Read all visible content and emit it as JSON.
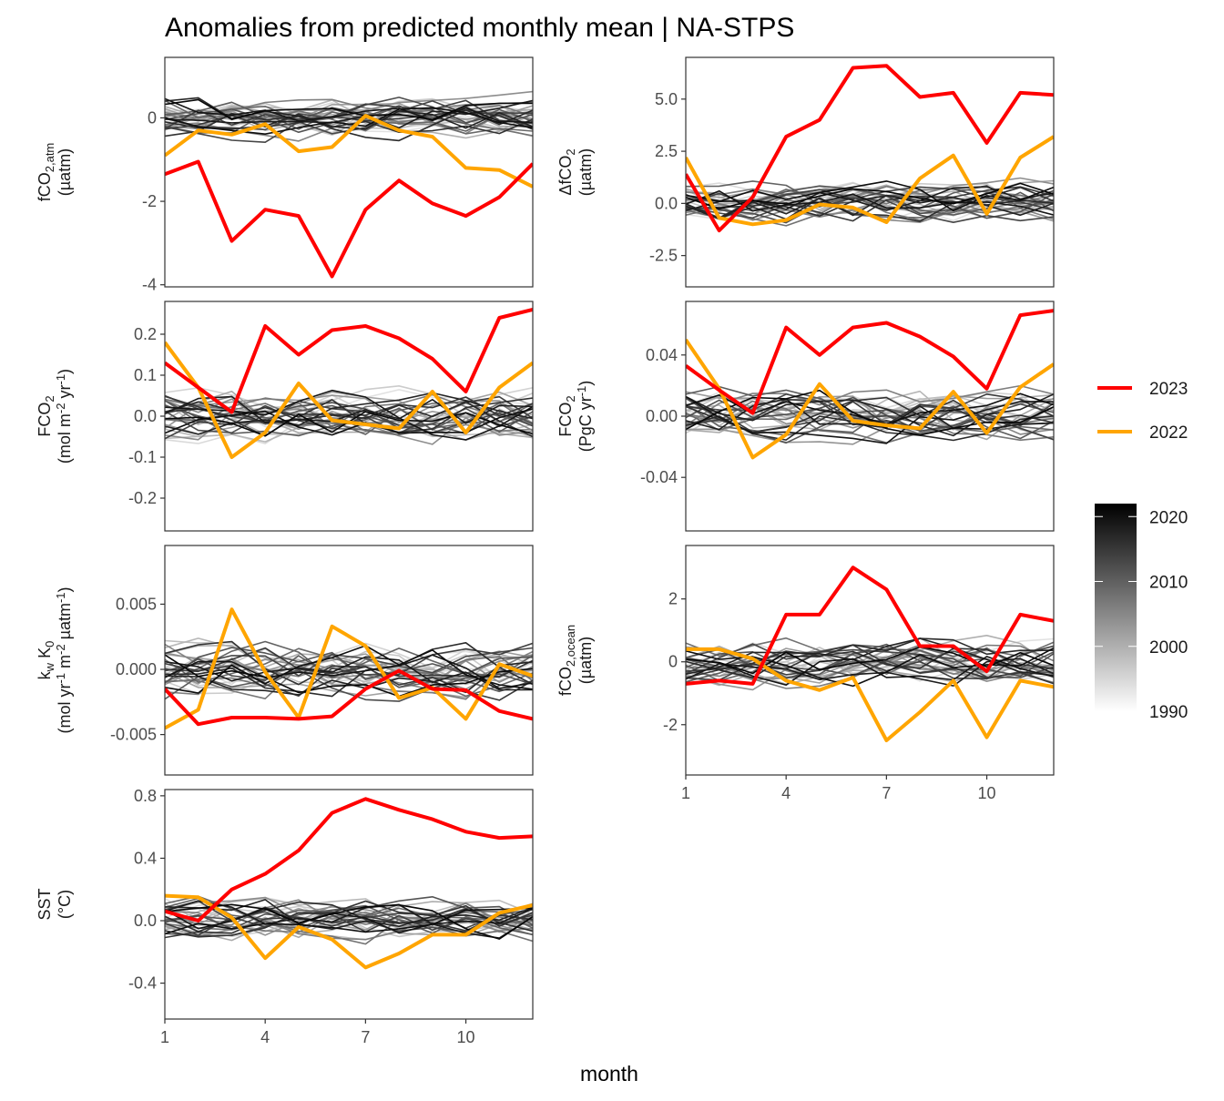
{
  "title": "Anomalies from predicted monthly mean | NA-STPS",
  "xlabel": "month",
  "x_ticks": [
    1,
    4,
    7,
    10
  ],
  "legend": {
    "highlight": [
      {
        "label": "2023",
        "color": "#ff0000"
      },
      {
        "label": "2022",
        "color": "#ffa500"
      }
    ],
    "gradient": {
      "labels": [
        "2020",
        "2010",
        "2000",
        "1990"
      ],
      "low_color": "#ffffff",
      "high_color": "#000000",
      "range": [
        1990,
        2022
      ]
    }
  },
  "chart_data": [
    {
      "type": "line",
      "ylabel": [
        "fCO2,atm",
        "(µatm)"
      ],
      "yticks": [
        "0",
        "-2",
        "-4"
      ],
      "ylim": [
        -4.05,
        1.45
      ],
      "series": [
        {
          "name": "2023",
          "values": [
            -1.35,
            -1.05,
            -2.95,
            -2.2,
            -2.35,
            -3.8,
            -2.2,
            -1.5,
            -2.05,
            -2.35,
            -1.9,
            -1.1
          ]
        },
        {
          "name": "2022",
          "values": [
            -0.9,
            -0.3,
            -0.4,
            -0.15,
            -0.8,
            -0.7,
            0.05,
            -0.3,
            -0.45,
            -1.2,
            -1.25,
            -1.65
          ]
        }
      ],
      "background_amplitude": 0.6
    },
    {
      "type": "line",
      "ylabel": [
        "ΔfCO2",
        "(µatm)"
      ],
      "yticks": [
        "5.0",
        "2.5",
        "0.0",
        "-2.5"
      ],
      "ylim": [
        -4.0,
        7.0
      ],
      "series": [
        {
          "name": "2023",
          "values": [
            1.4,
            -1.3,
            0.3,
            3.2,
            4.0,
            6.5,
            6.6,
            5.1,
            5.3,
            2.9,
            5.3,
            5.2
          ]
        },
        {
          "name": "2022",
          "values": [
            2.2,
            -0.7,
            -1.0,
            -0.8,
            -0.05,
            -0.2,
            -0.9,
            1.2,
            2.3,
            -0.5,
            2.2,
            3.2
          ]
        }
      ],
      "background_amplitude": 1.3
    },
    {
      "type": "line",
      "ylabel": [
        "FCO2",
        "(mol m-2 yr-1)"
      ],
      "yticks": [
        "0.2",
        "0.1",
        "0.0",
        "-0.1",
        "-0.2"
      ],
      "ylim": [
        -0.28,
        0.28
      ],
      "series": [
        {
          "name": "2023",
          "values": [
            0.13,
            0.07,
            0.01,
            0.22,
            0.15,
            0.21,
            0.22,
            0.19,
            0.14,
            0.06,
            0.24,
            0.26
          ]
        },
        {
          "name": "2022",
          "values": [
            0.18,
            0.07,
            -0.1,
            -0.04,
            0.08,
            -0.01,
            -0.02,
            -0.03,
            0.06,
            -0.04,
            0.07,
            0.13
          ]
        }
      ],
      "background_amplitude": 0.08
    },
    {
      "type": "line",
      "ylabel": [
        "FCO2",
        "(PgC yr-1)"
      ],
      "yticks": [
        "0.04",
        "0.00",
        "-0.04"
      ],
      "ylim": [
        -0.075,
        0.075
      ],
      "series": [
        {
          "name": "2023",
          "values": [
            0.033,
            0.017,
            0.002,
            0.058,
            0.04,
            0.058,
            0.061,
            0.052,
            0.039,
            0.018,
            0.066,
            0.069
          ]
        },
        {
          "name": "2022",
          "values": [
            0.05,
            0.018,
            -0.027,
            -0.012,
            0.021,
            -0.003,
            -0.006,
            -0.008,
            0.016,
            -0.011,
            0.019,
            0.034
          ]
        }
      ],
      "background_amplitude": 0.022
    },
    {
      "type": "line",
      "ylabel": [
        "kw K0",
        "(mol yr-1 m-2 µatm-1)"
      ],
      "yticks": [
        "0.005",
        "0.000",
        "-0.005"
      ],
      "ylim": [
        -0.0081,
        0.0095
      ],
      "series": [
        {
          "name": "2023",
          "values": [
            -0.0015,
            -0.0042,
            -0.0037,
            -0.0037,
            -0.0038,
            -0.0036,
            -0.0015,
            -0.0001,
            -0.0015,
            -0.0016,
            -0.0032,
            -0.0038
          ]
        },
        {
          "name": "2022",
          "values": [
            -0.0045,
            -0.0031,
            0.0046,
            -0.0002,
            -0.0037,
            0.0033,
            0.0018,
            -0.0022,
            -0.0014,
            -0.0038,
            0.0004,
            -0.0005
          ]
        }
      ],
      "background_amplitude": 0.0028
    },
    {
      "type": "line",
      "ylabel": [
        "fCO2,ocean",
        "(µatm)"
      ],
      "yticks": [
        "2",
        "0",
        "-2"
      ],
      "ylim": [
        -3.6,
        3.7
      ],
      "series": [
        {
          "name": "2023",
          "values": [
            -0.7,
            -0.6,
            -0.7,
            1.5,
            1.5,
            3.0,
            2.3,
            0.5,
            0.5,
            -0.3,
            1.5,
            1.3
          ]
        },
        {
          "name": "2022",
          "values": [
            0.4,
            0.4,
            0.1,
            -0.6,
            -0.9,
            -0.5,
            -2.5,
            -1.6,
            -0.6,
            -2.4,
            -0.6,
            -0.8
          ]
        }
      ],
      "background_amplitude": 1.0
    },
    {
      "type": "line",
      "ylabel": [
        "SST",
        "(°C)"
      ],
      "yticks": [
        "0.8",
        "0.4",
        "0.0",
        "-0.4"
      ],
      "ylim": [
        -0.63,
        0.84
      ],
      "series": [
        {
          "name": "2023",
          "values": [
            0.06,
            0.0,
            0.2,
            0.3,
            0.45,
            0.69,
            0.78,
            0.71,
            0.65,
            0.57,
            0.53,
            0.54
          ]
        },
        {
          "name": "2022",
          "values": [
            0.16,
            0.15,
            0.02,
            -0.24,
            -0.04,
            -0.12,
            -0.3,
            -0.21,
            -0.09,
            -0.09,
            0.05,
            0.1
          ]
        }
      ],
      "background_amplitude": 0.18
    }
  ]
}
